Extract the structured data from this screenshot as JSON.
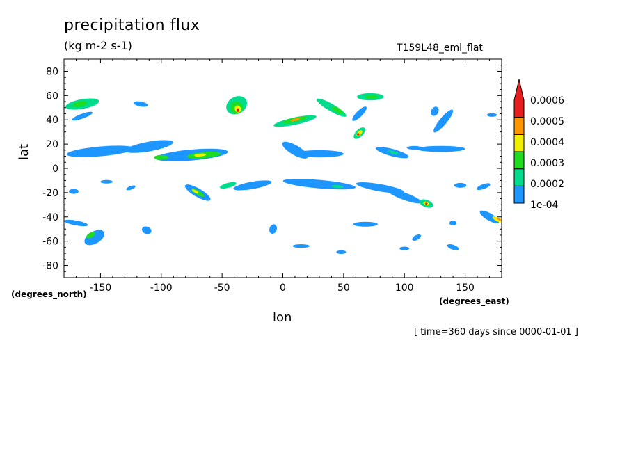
{
  "chart_data": {
    "type": "heatmap",
    "title": "precipitation flux",
    "units": "(kg m-2 s-1)",
    "run_name": "T159L48_eml_flat",
    "xlabel": "lon",
    "ylabel": "lat",
    "x_unit_label": "(degrees_east)",
    "y_unit_label": "(degrees_north)",
    "footer": "[ time=360 days since 0000-01-01 ]",
    "xlim": [
      -180,
      180
    ],
    "ylim": [
      -90,
      90
    ],
    "x_ticks": [
      -150,
      -100,
      -50,
      0,
      50,
      100,
      150
    ],
    "x_tick_labels": [
      "-150",
      "-100",
      "-50",
      "0",
      "50",
      "100",
      "150"
    ],
    "y_ticks": [
      80,
      60,
      40,
      20,
      0,
      -20,
      -40,
      -60,
      -80
    ],
    "y_tick_labels": [
      "80",
      "60",
      "40",
      "20",
      "0",
      "-20",
      "-40",
      "-60",
      "-80"
    ],
    "colorbar": {
      "labels": [
        "0.0006",
        "0.0005",
        "0.0004",
        "0.0003",
        "0.0002",
        "1e-04"
      ],
      "levels": [
        0.0001,
        0.0002,
        0.0003,
        0.0004,
        0.0005,
        0.0006
      ],
      "colors": [
        "#1e96ff",
        "#00dc8c",
        "#1edc1e",
        "#f0f000",
        "#ff9600",
        "#e61e1e"
      ]
    },
    "features": [
      {
        "lon": -165,
        "lat": 53,
        "dlon": 14,
        "dlat": 4,
        "rot": -10,
        "level": 0.00025
      },
      {
        "lon": -167,
        "lat": 53,
        "dlon": 6,
        "dlat": 2,
        "rot": -10,
        "level": 0.00033
      },
      {
        "lon": -165,
        "lat": 43,
        "dlon": 9,
        "dlat": 2,
        "rot": -20,
        "level": 0.00012
      },
      {
        "lon": -117,
        "lat": 53,
        "dlon": 6,
        "dlat": 2,
        "rot": 10,
        "level": 0.00012
      },
      {
        "lon": -38,
        "lat": 52,
        "dlon": 9,
        "dlat": 7,
        "rot": -30,
        "level": 0.00022
      },
      {
        "lon": -38,
        "lat": 50,
        "dlon": 5,
        "dlat": 5,
        "rot": -30,
        "level": 0.00035
      },
      {
        "lon": -37,
        "lat": 49,
        "dlon": 2.5,
        "dlat": 3,
        "rot": -30,
        "level": 0.00045
      },
      {
        "lon": -37,
        "lat": 48,
        "dlon": 1,
        "dlat": 1.5,
        "rot": 0,
        "level": 0.00061
      },
      {
        "lon": 10,
        "lat": 39,
        "dlon": 18,
        "dlat": 3,
        "rot": -12,
        "level": 0.00022
      },
      {
        "lon": 10,
        "lat": 40,
        "dlon": 10,
        "dlat": 1.8,
        "rot": -12,
        "level": 0.00035
      },
      {
        "lon": 10,
        "lat": 40,
        "dlon": 4,
        "dlat": 1,
        "rot": -12,
        "level": 0.00055
      },
      {
        "lon": 40,
        "lat": 50,
        "dlon": 14,
        "dlat": 3,
        "rot": 30,
        "level": 0.00022
      },
      {
        "lon": 45,
        "lat": 48,
        "dlon": 5,
        "dlat": 1.8,
        "rot": 30,
        "level": 0.00033
      },
      {
        "lon": 72,
        "lat": 59,
        "dlon": 11,
        "dlat": 3,
        "rot": 0,
        "level": 0.00022
      },
      {
        "lon": 73,
        "lat": 59,
        "dlon": 5,
        "dlat": 1.4,
        "rot": 0,
        "level": 0.00033
      },
      {
        "lon": 63,
        "lat": 45,
        "dlon": 8,
        "dlat": 2.5,
        "rot": -45,
        "level": 0.00012
      },
      {
        "lon": 63,
        "lat": 29,
        "dlon": 6,
        "dlat": 3,
        "rot": -45,
        "level": 0.00025
      },
      {
        "lon": 63,
        "lat": 29,
        "dlon": 3,
        "dlat": 1.6,
        "rot": -45,
        "level": 0.00045
      },
      {
        "lon": 62,
        "lat": 28,
        "dlon": 1,
        "dlat": 1,
        "rot": 0,
        "level": 0.00061
      },
      {
        "lon": 125,
        "lat": 47,
        "dlon": 3,
        "dlat": 4,
        "rot": 30,
        "level": 0.00012
      },
      {
        "lon": 132,
        "lat": 39,
        "dlon": 12,
        "dlat": 3,
        "rot": -50,
        "level": 0.00015
      },
      {
        "lon": 172,
        "lat": 44,
        "dlon": 4,
        "dlat": 1.5,
        "rot": 0,
        "level": 0.00012
      },
      {
        "lon": -150,
        "lat": 14,
        "dlon": 28,
        "dlat": 4,
        "rot": -5,
        "level": 0.00015
      },
      {
        "lon": -110,
        "lat": 18,
        "dlon": 20,
        "dlat": 4,
        "rot": -10,
        "level": 0.00015
      },
      {
        "lon": -75,
        "lat": 11,
        "dlon": 30,
        "dlat": 4.5,
        "rot": -5,
        "level": 0.00018
      },
      {
        "lon": -65,
        "lat": 11,
        "dlon": 14,
        "dlat": 2.5,
        "rot": -5,
        "level": 0.00033
      },
      {
        "lon": -68,
        "lat": 11,
        "dlon": 5,
        "dlat": 1.2,
        "rot": -5,
        "level": 0.00045
      },
      {
        "lon": -100,
        "lat": 9,
        "dlon": 6,
        "dlat": 2,
        "rot": 0,
        "level": 0.00033
      },
      {
        "lon": 10,
        "lat": 15,
        "dlon": 12,
        "dlat": 4,
        "rot": 30,
        "level": 0.00015
      },
      {
        "lon": 30,
        "lat": 12,
        "dlon": 20,
        "dlat": 3,
        "rot": 0,
        "level": 0.00015
      },
      {
        "lon": 90,
        "lat": 13,
        "dlon": 14,
        "dlat": 3,
        "rot": 15,
        "level": 0.00015
      },
      {
        "lon": 91,
        "lat": 13,
        "dlon": 5,
        "dlat": 1.2,
        "rot": 15,
        "level": 0.00025
      },
      {
        "lon": 130,
        "lat": 16,
        "dlon": 20,
        "dlat": 2.5,
        "rot": 0,
        "level": 0.00012
      },
      {
        "lon": 108,
        "lat": 17,
        "dlon": 6,
        "dlat": 1.5,
        "rot": 0,
        "level": 0.00012
      },
      {
        "lon": 30,
        "lat": -13,
        "dlon": 30,
        "dlat": 3.5,
        "rot": 5,
        "level": 0.00015
      },
      {
        "lon": 80,
        "lat": -16,
        "dlon": 20,
        "dlat": 3,
        "rot": 10,
        "level": 0.00015
      },
      {
        "lon": 100,
        "lat": -23,
        "dlon": 15,
        "dlat": 3,
        "rot": 20,
        "level": 0.00015
      },
      {
        "lon": 118,
        "lat": -29,
        "dlon": 6,
        "dlat": 3,
        "rot": 20,
        "level": 0.00022
      },
      {
        "lon": 118,
        "lat": -29,
        "dlon": 2.5,
        "dlat": 1.4,
        "rot": 20,
        "level": 0.00045
      },
      {
        "lon": 118,
        "lat": -29,
        "dlon": 1,
        "dlat": 0.8,
        "rot": 0,
        "level": 0.00061
      },
      {
        "lon": 45,
        "lat": -15,
        "dlon": 5,
        "dlat": 1.2,
        "rot": 5,
        "level": 0.00025
      },
      {
        "lon": -25,
        "lat": -14,
        "dlon": 16,
        "dlat": 3,
        "rot": -10,
        "level": 0.00015
      },
      {
        "lon": -70,
        "lat": -20,
        "dlon": 12,
        "dlat": 3.5,
        "rot": 30,
        "level": 0.00018
      },
      {
        "lon": -70,
        "lat": -20,
        "dlon": 6,
        "dlat": 1.8,
        "rot": 30,
        "level": 0.00033
      },
      {
        "lon": -72,
        "lat": -19,
        "dlon": 3,
        "dlat": 1,
        "rot": 30,
        "level": 0.00045
      },
      {
        "lon": -45,
        "lat": -14,
        "dlon": 7,
        "dlat": 2,
        "rot": -15,
        "level": 0.00025
      },
      {
        "lon": -172,
        "lat": -19,
        "dlon": 4,
        "dlat": 2,
        "rot": 0,
        "level": 0.00012
      },
      {
        "lon": -145,
        "lat": -11,
        "dlon": 5,
        "dlat": 1.5,
        "rot": 0,
        "level": 0.00012
      },
      {
        "lon": -125,
        "lat": -16,
        "dlon": 4,
        "dlat": 1.5,
        "rot": -20,
        "level": 0.00012
      },
      {
        "lon": 170,
        "lat": -40,
        "dlon": 9,
        "dlat": 3,
        "rot": 30,
        "level": 0.00015
      },
      {
        "lon": 176,
        "lat": -42,
        "dlon": 4,
        "dlat": 1.4,
        "rot": 30,
        "level": 0.0004
      },
      {
        "lon": 178,
        "lat": -42,
        "dlon": 2,
        "dlat": 0.8,
        "rot": 30,
        "level": 0.00055
      },
      {
        "lon": -170,
        "lat": -45,
        "dlon": 10,
        "dlat": 2,
        "rot": 10,
        "level": 0.00015
      },
      {
        "lon": -155,
        "lat": -57,
        "dlon": 9,
        "dlat": 5,
        "rot": -30,
        "level": 0.00018
      },
      {
        "lon": -158,
        "lat": -55,
        "dlon": 4,
        "dlat": 2,
        "rot": -30,
        "level": 0.00033
      },
      {
        "lon": -112,
        "lat": -51,
        "dlon": 4,
        "dlat": 3,
        "rot": 20,
        "level": 0.00012
      },
      {
        "lon": -8,
        "lat": -50,
        "dlon": 3,
        "dlat": 4,
        "rot": 20,
        "level": 0.00012
      },
      {
        "lon": 15,
        "lat": -64,
        "dlon": 7,
        "dlat": 1.5,
        "rot": 0,
        "level": 0.00012
      },
      {
        "lon": 68,
        "lat": -46,
        "dlon": 10,
        "dlat": 2,
        "rot": 0,
        "level": 0.00012
      },
      {
        "lon": 140,
        "lat": -65,
        "dlon": 5,
        "dlat": 2,
        "rot": 20,
        "level": 0.00012
      },
      {
        "lon": 110,
        "lat": -57,
        "dlon": 4,
        "dlat": 2,
        "rot": -30,
        "level": 0.00012
      },
      {
        "lon": 100,
        "lat": -66,
        "dlon": 4,
        "dlat": 1.5,
        "rot": 0,
        "level": 0.00012
      },
      {
        "lon": 48,
        "lat": -69,
        "dlon": 4,
        "dlat": 1.5,
        "rot": 0,
        "level": 0.00012
      },
      {
        "lon": 146,
        "lat": -14,
        "dlon": 5,
        "dlat": 2,
        "rot": 0,
        "level": 0.00012
      },
      {
        "lon": 165,
        "lat": -15,
        "dlon": 6,
        "dlat": 2,
        "rot": -20,
        "level": 0.00012
      },
      {
        "lon": 140,
        "lat": -45,
        "dlon": 3,
        "dlat": 2,
        "rot": 0,
        "level": 0.00012
      }
    ]
  }
}
